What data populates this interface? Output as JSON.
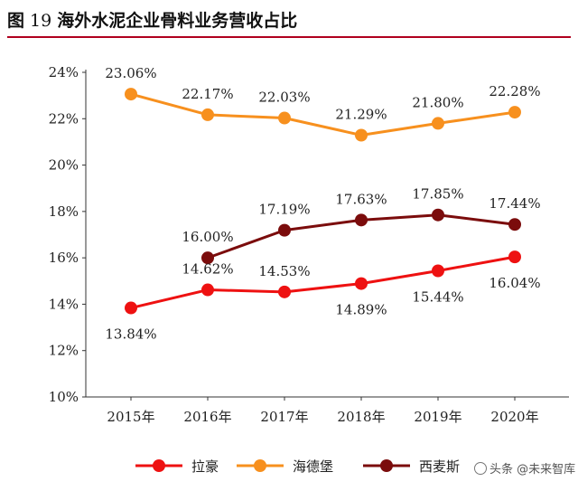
{
  "header": {
    "figure_label": "图",
    "figure_number": "19",
    "figure_title": "海外水泥企业骨料业务营收占比"
  },
  "chart_data": {
    "type": "line",
    "title": "海外水泥企业骨料业务营收占比",
    "categories": [
      "2015年",
      "2016年",
      "2017年",
      "2018年",
      "2019年",
      "2020年"
    ],
    "y_ticks": [
      "10%",
      "12%",
      "14%",
      "16%",
      "18%",
      "20%",
      "22%",
      "24%"
    ],
    "ylim": [
      10,
      24
    ],
    "grid": false,
    "legend_position": "bottom",
    "series": [
      {
        "name": "拉豪",
        "color": "#ee1111",
        "values": [
          13.84,
          14.62,
          14.53,
          14.89,
          15.44,
          16.04
        ],
        "labels": [
          "13.84%",
          "14.62%",
          "14.53%",
          "14.89%",
          "15.44%",
          "16.04%"
        ]
      },
      {
        "name": "海德堡",
        "color": "#f7901e",
        "values": [
          23.06,
          22.17,
          22.03,
          21.29,
          21.8,
          22.28
        ],
        "labels": [
          "23.06%",
          "22.17%",
          "22.03%",
          "21.29%",
          "21.80%",
          "22.28%"
        ]
      },
      {
        "name": "西麦斯",
        "color": "#7b0c0c",
        "values": [
          null,
          16.0,
          17.19,
          17.63,
          17.85,
          17.44
        ],
        "labels": [
          "",
          "16.00%",
          "17.19%",
          "17.63%",
          "17.85%",
          "17.44%"
        ]
      }
    ]
  },
  "watermark": {
    "text": "头条 @未来智库"
  }
}
